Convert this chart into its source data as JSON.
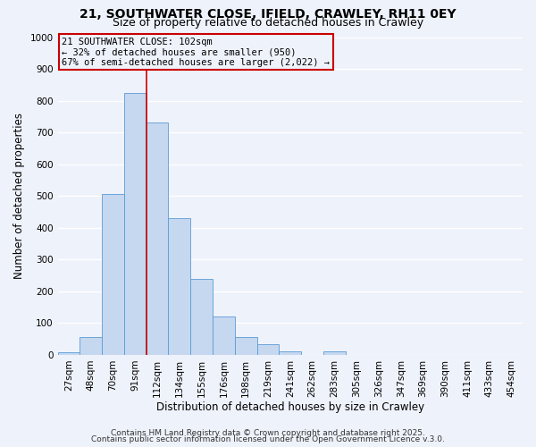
{
  "title": "21, SOUTHWATER CLOSE, IFIELD, CRAWLEY, RH11 0EY",
  "subtitle": "Size of property relative to detached houses in Crawley",
  "xlabel": "Distribution of detached houses by size in Crawley",
  "ylabel": "Number of detached properties",
  "bar_labels": [
    "27sqm",
    "48sqm",
    "70sqm",
    "91sqm",
    "112sqm",
    "134sqm",
    "155sqm",
    "176sqm",
    "198sqm",
    "219sqm",
    "241sqm",
    "262sqm",
    "283sqm",
    "305sqm",
    "326sqm",
    "347sqm",
    "369sqm",
    "390sqm",
    "411sqm",
    "433sqm",
    "454sqm"
  ],
  "bar_values": [
    8,
    55,
    505,
    825,
    730,
    430,
    240,
    120,
    55,
    35,
    12,
    0,
    12,
    0,
    0,
    0,
    0,
    0,
    0,
    0,
    0
  ],
  "bar_color": "#c5d8f0",
  "bar_edge_color": "#5b9bd5",
  "vline_x": 3.5,
  "vline_color": "#cc0000",
  "annotation_line1": "21 SOUTHWATER CLOSE: 102sqm",
  "annotation_line2": "← 32% of detached houses are smaller (950)",
  "annotation_line3": "67% of semi-detached houses are larger (2,022) →",
  "box_edge_color": "#cc0000",
  "ylim": [
    0,
    1000
  ],
  "yticks": [
    0,
    100,
    200,
    300,
    400,
    500,
    600,
    700,
    800,
    900,
    1000
  ],
  "footer1": "Contains HM Land Registry data © Crown copyright and database right 2025.",
  "footer2": "Contains public sector information licensed under the Open Government Licence v.3.0.",
  "background_color": "#eef2fb",
  "grid_color": "#ffffff",
  "title_fontsize": 10,
  "subtitle_fontsize": 9,
  "axis_label_fontsize": 8.5,
  "tick_fontsize": 7.5,
  "annotation_fontsize": 7.5,
  "footer_fontsize": 6.5
}
